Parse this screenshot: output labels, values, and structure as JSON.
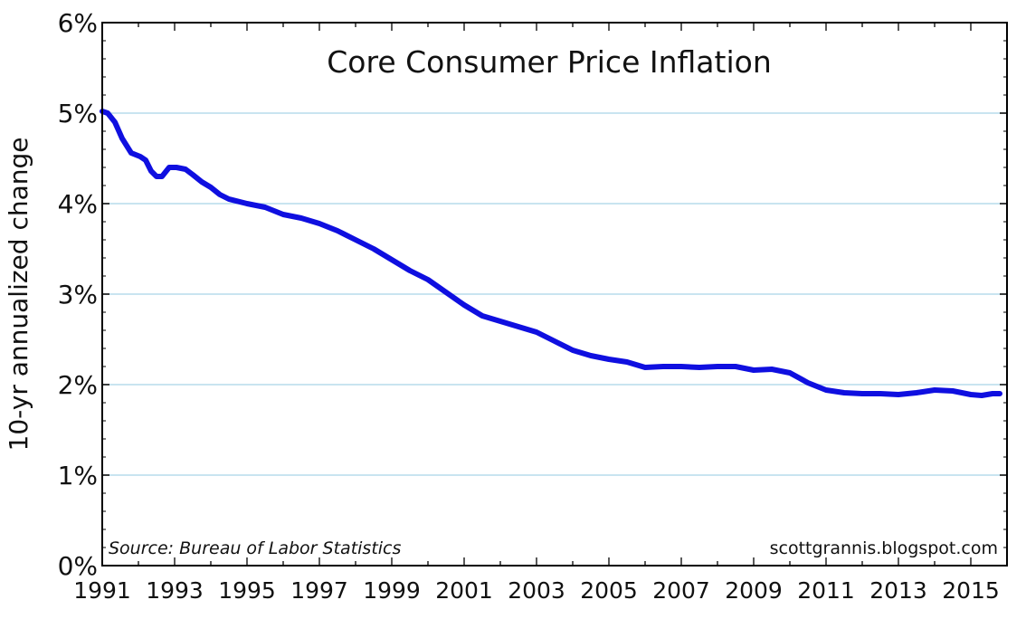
{
  "chart_data": {
    "type": "line",
    "title": "Core Consumer Price Inflation",
    "ylabel": "10-yr annualized change",
    "xlabel": "",
    "source_note": "Source: Bureau of Labor Statistics",
    "credit": "scottgrannis.blogspot.com",
    "xlim": [
      1991.0,
      2016.0
    ],
    "ylim": [
      0,
      6
    ],
    "y_ticks": [
      0,
      1,
      2,
      3,
      4,
      5,
      6
    ],
    "y_tick_labels": [
      "0%",
      "1%",
      "2%",
      "3%",
      "4%",
      "5%",
      "6%"
    ],
    "x_tick_labels": [
      "1991",
      "1993",
      "1995",
      "1997",
      "1999",
      "2001",
      "2003",
      "2005",
      "2007",
      "2009",
      "2011",
      "2013",
      "2015"
    ],
    "x_ticks": [
      1991,
      1993,
      1995,
      1997,
      1999,
      2001,
      2003,
      2005,
      2007,
      2009,
      2011,
      2013,
      2015
    ],
    "grid": "horizontal",
    "series": [
      {
        "name": "Core CPI 10-yr annualized change",
        "color": "#0f0fe0",
        "x": [
          1991.0,
          1991.15,
          1991.35,
          1991.55,
          1991.8,
          1992.05,
          1992.2,
          1992.35,
          1992.5,
          1992.65,
          1992.85,
          1993.05,
          1993.3,
          1993.5,
          1993.75,
          1994.0,
          1994.25,
          1994.5,
          1995.0,
          1995.5,
          1996.0,
          1996.5,
          1997.0,
          1997.5,
          1998.0,
          1998.5,
          1999.0,
          1999.5,
          2000.0,
          2000.5,
          2001.0,
          2001.5,
          2002.0,
          2002.5,
          2003.0,
          2003.5,
          2004.0,
          2004.5,
          2005.0,
          2005.5,
          2006.0,
          2006.5,
          2007.0,
          2007.5,
          2008.0,
          2008.5,
          2009.0,
          2009.5,
          2010.0,
          2010.5,
          2011.0,
          2011.5,
          2012.0,
          2012.5,
          2013.0,
          2013.5,
          2014.0,
          2014.5,
          2015.0,
          2015.3,
          2015.6,
          2015.8
        ],
        "values": [
          5.02,
          5.0,
          4.9,
          4.72,
          4.56,
          4.52,
          4.48,
          4.36,
          4.3,
          4.3,
          4.4,
          4.4,
          4.38,
          4.32,
          4.24,
          4.18,
          4.1,
          4.05,
          4.0,
          3.96,
          3.88,
          3.84,
          3.78,
          3.7,
          3.6,
          3.5,
          3.38,
          3.26,
          3.16,
          3.02,
          2.88,
          2.76,
          2.7,
          2.64,
          2.58,
          2.48,
          2.38,
          2.32,
          2.28,
          2.25,
          2.19,
          2.2,
          2.2,
          2.19,
          2.2,
          2.2,
          2.16,
          2.17,
          2.13,
          2.02,
          1.94,
          1.91,
          1.9,
          1.9,
          1.89,
          1.91,
          1.94,
          1.93,
          1.89,
          1.88,
          1.9,
          1.9
        ]
      }
    ]
  }
}
